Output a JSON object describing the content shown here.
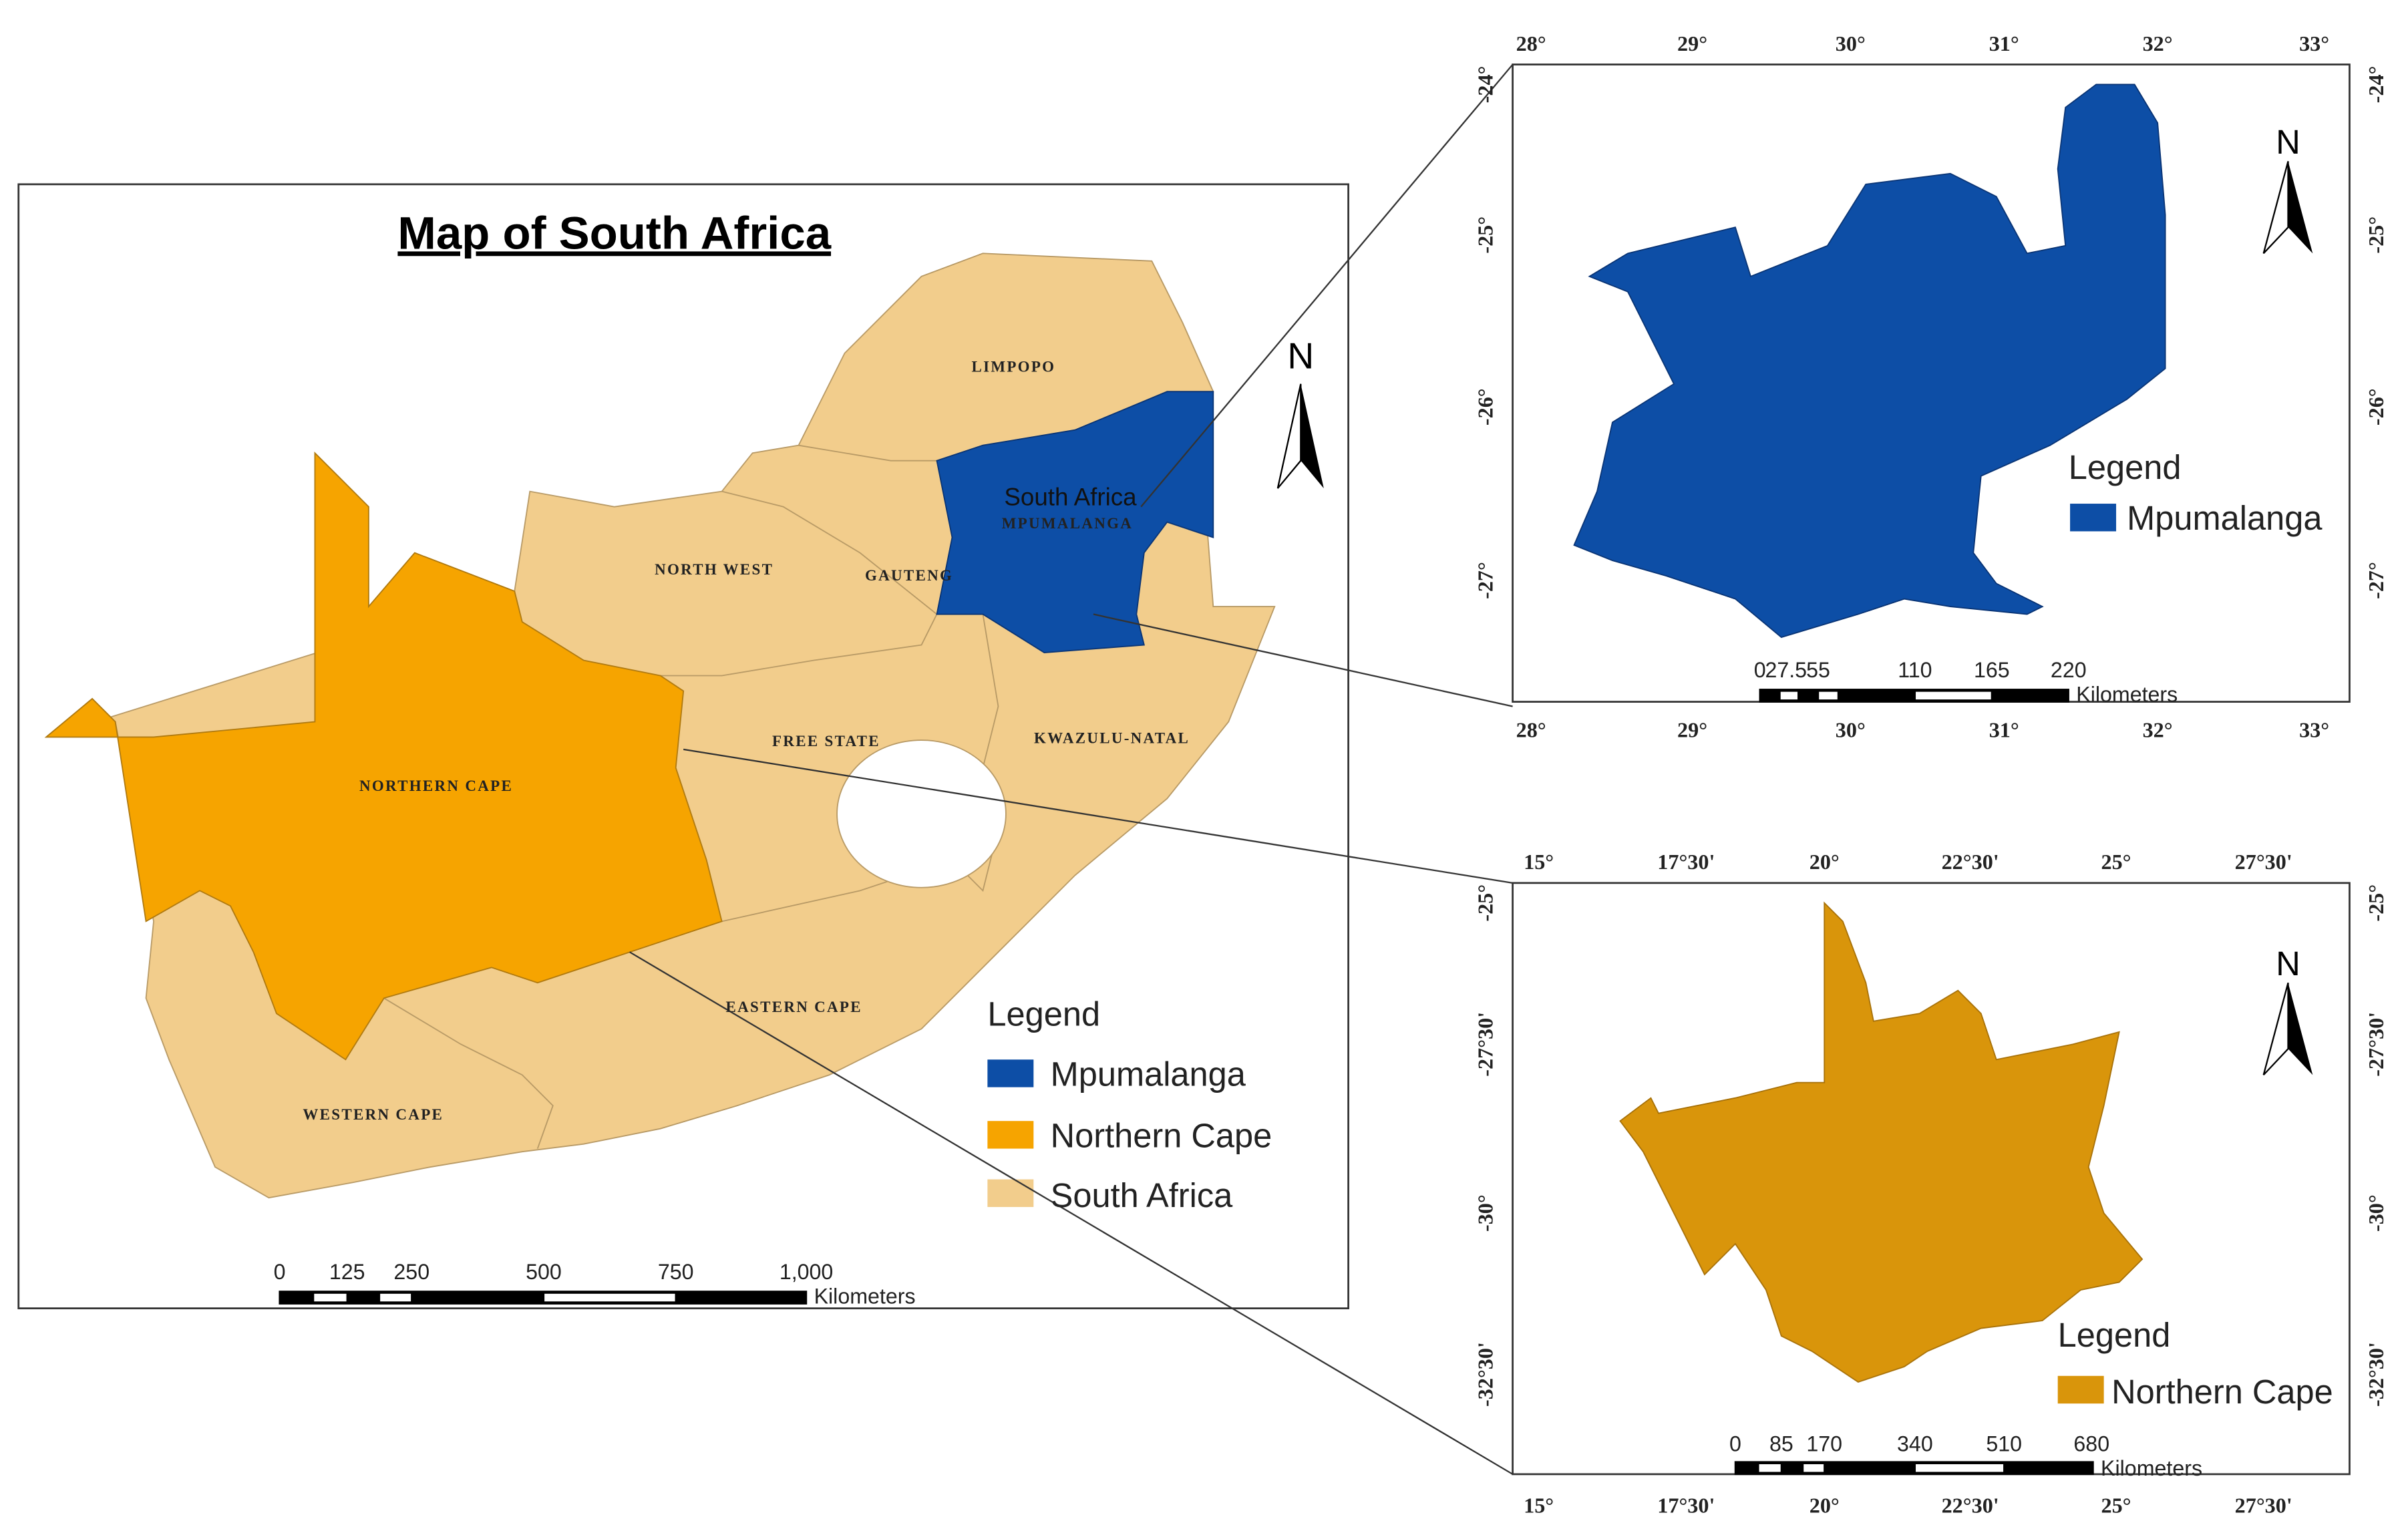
{
  "main_map": {
    "title": "Map of South Africa",
    "country_label": "South Africa",
    "north": "N",
    "provinces": [
      "LIMPOPO",
      "NORTH WEST",
      "GAUTENG",
      "MPUMALANGA",
      "FREE STATE",
      "KWAZULU-NATAL",
      "NORTHERN CAPE",
      "EASTERN CAPE",
      "WESTERN CAPE"
    ],
    "legend": {
      "title": "Legend",
      "items": [
        "Mpumalanga",
        "Northern Cape",
        "South Africa"
      ]
    },
    "scale": {
      "labels": [
        "0",
        "125",
        "250",
        "500",
        "750",
        "1,000"
      ],
      "unit": "Kilometers"
    }
  },
  "insets": [
    {
      "x_labels": [
        "28°",
        "29°",
        "30°",
        "31°",
        "32°",
        "33°"
      ],
      "y_labels": [
        "-24°",
        "-25°",
        "-26°",
        "-27°"
      ],
      "north": "N",
      "legend": {
        "title": "Legend",
        "items": [
          "Mpumalanga"
        ]
      },
      "scale": {
        "labels": [
          "0",
          "27.5",
          "55",
          "110",
          "165",
          "220"
        ],
        "unit": "Kilometers"
      }
    },
    {
      "x_labels": [
        "15°",
        "17°30'",
        "20°",
        "22°30'",
        "25°",
        "27°30'"
      ],
      "y_labels": [
        "-25°",
        "-27°30'",
        "-30°",
        "-32°30'"
      ],
      "north": "N",
      "legend": {
        "title": "Legend",
        "items": [
          "Northern Cape"
        ]
      },
      "scale": {
        "labels": [
          "0",
          "85",
          "170",
          "340",
          "510",
          "680"
        ],
        "unit": "Kilometers"
      }
    }
  ]
}
